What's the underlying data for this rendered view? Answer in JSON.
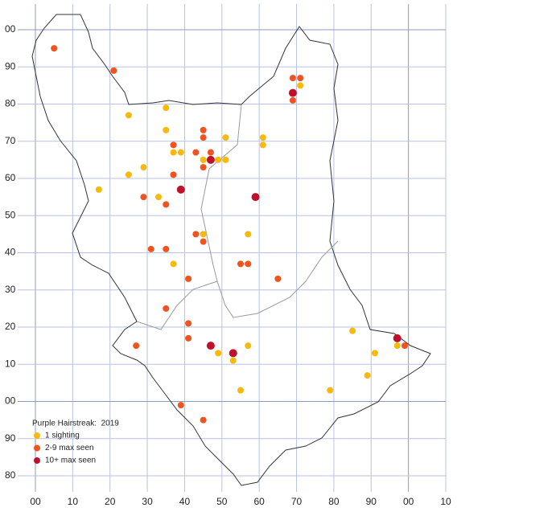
{
  "chart_data": {
    "type": "scatter",
    "legend_title": "Purple Hairstreak:  2019",
    "xlim": [
      0,
      110
    ],
    "ylim": [
      80,
      200
    ],
    "xticks": [
      {
        "value": 0,
        "label": "00"
      },
      10,
      20,
      30,
      40,
      50,
      60,
      70,
      80,
      90,
      {
        "value": 100,
        "label": "00"
      },
      {
        "value": 110,
        "label": "10"
      }
    ],
    "yticks": [
      80,
      90,
      {
        "value": 100,
        "label": "00"
      },
      {
        "value": 110,
        "label": "10"
      },
      {
        "value": 120,
        "label": "20"
      },
      {
        "value": 130,
        "label": "30"
      },
      {
        "value": 140,
        "label": "40"
      },
      {
        "value": 150,
        "label": "50"
      },
      {
        "value": 160,
        "label": "60"
      },
      {
        "value": 170,
        "label": "70"
      },
      {
        "value": 180,
        "label": "80"
      },
      {
        "value": 190,
        "label": "90"
      },
      {
        "value": 200,
        "label": "00"
      }
    ],
    "grid": true,
    "grid_color": "#b7c3e0",
    "major_grid_color": "#8c9bbf",
    "series": [
      {
        "name": "1 sighting",
        "color": "#f7b90c",
        "x": [
          35,
          25,
          35,
          51,
          61,
          61,
          37,
          39,
          45,
          49,
          51,
          29,
          25,
          17,
          33,
          45,
          57,
          37,
          71,
          85,
          91,
          97,
          49,
          53,
          57,
          89,
          55,
          79
        ],
        "values": [
          179,
          177,
          173,
          171,
          171,
          169,
          167,
          167,
          165,
          165,
          165,
          163,
          161,
          157,
          155,
          145,
          145,
          137,
          185,
          119,
          113,
          115,
          113,
          111,
          115,
          107,
          103,
          103
        ]
      },
      {
        "name": "2-9 max seen",
        "color": "#f0531f",
        "x": [
          5,
          21,
          69,
          71,
          69,
          45,
          45,
          37,
          43,
          47,
          45,
          37,
          29,
          35,
          43,
          45,
          31,
          35,
          55,
          57,
          41,
          65,
          35,
          41,
          41,
          27,
          99,
          39,
          45
        ],
        "values": [
          195,
          189,
          187,
          187,
          181,
          173,
          171,
          169,
          167,
          167,
          163,
          161,
          155,
          153,
          145,
          143,
          141,
          141,
          137,
          137,
          133,
          133,
          125,
          121,
          117,
          115,
          115,
          99,
          95
        ]
      },
      {
        "name": "10+ max seen",
        "color": "#c0102a",
        "x": [
          69,
          47,
          39,
          59,
          47,
          53,
          97
        ],
        "values": [
          183,
          165,
          157,
          155,
          115,
          113,
          117
        ]
      }
    ]
  }
}
